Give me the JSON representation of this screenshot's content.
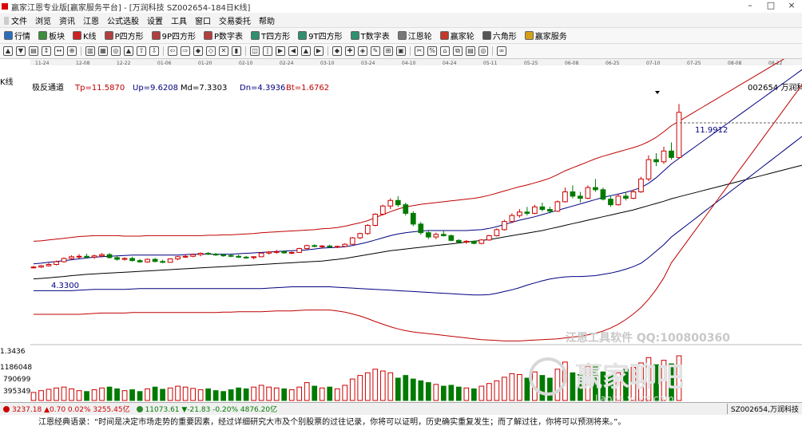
{
  "titlebar": {
    "title": "赢家江恩专业版[赢家服务平台] - [万润科技  SZ002654-184日K线]"
  },
  "menu": [
    "文件",
    "浏览",
    "资讯",
    "江恩",
    "公式选股",
    "设置",
    "工具",
    "窗口",
    "交易委托",
    "帮助"
  ],
  "toolbar": [
    {
      "label": "行情",
      "icon": "grid-icon",
      "color": "#2a6ebb"
    },
    {
      "label": "板块",
      "icon": "blocks-icon",
      "color": "#3a8f3a"
    },
    {
      "label": "K线",
      "icon": "candle-icon",
      "color": "#cc2222"
    },
    {
      "label": "P四方形",
      "icon": "p-square-icon",
      "color": "#b04040"
    },
    {
      "label": "9P四方形",
      "icon": "9p-square-icon",
      "color": "#b04040"
    },
    {
      "label": "P数字表",
      "icon": "p-table-icon",
      "color": "#b04040"
    },
    {
      "label": "T四方形",
      "icon": "t-square-icon",
      "color": "#2f8f6f"
    },
    {
      "label": "9T四方形",
      "icon": "9t-square-icon",
      "color": "#2f8f6f"
    },
    {
      "label": "T数字表",
      "icon": "t-table-icon",
      "color": "#2f8f6f"
    },
    {
      "label": "江恩轮",
      "icon": "gann-wheel-icon",
      "color": "#777"
    },
    {
      "label": "赢家轮",
      "icon": "winner-wheel-icon",
      "color": "#c0392b"
    },
    {
      "label": "六角形",
      "icon": "hexagon-icon",
      "color": "#555"
    },
    {
      "label": "赢家服务",
      "icon": "dollar-icon",
      "color": "#d4a017"
    }
  ],
  "chart": {
    "left_label": "K线",
    "indicator": {
      "name": "极反通道",
      "tp": "Tp=11.5870",
      "up": "Up=9.6208",
      "md": "Md=7.3303",
      "dn": "Dn=4.3936",
      "bt": "Bt=1.6762"
    },
    "stock_tag": "002654 万润科技",
    "high_label": "11.9912",
    "low_label": "4.3300",
    "volume_axis": [
      "1.3436",
      "1186048",
      "790699",
      "395349"
    ],
    "date_ticks": [
      "11-24",
      "12-08",
      "12-22",
      "01-06",
      "01-20",
      "02-10",
      "02-24",
      "03-10",
      "03-24",
      "04-10",
      "04-24",
      "05-11",
      "05-25",
      "06-08",
      "06-25",
      "07-10",
      "07-25",
      "08-08",
      "08-22"
    ],
    "watermark1": "江恩工具软件 QQ:100800360",
    "watermark2": "赢家聊吧",
    "watermark3": "liaoba.yucd.com"
  },
  "chart_data": {
    "type": "candlestick",
    "series_name": "万润科技 SZ002654 日K线",
    "ohlc": [
      [
        4.38,
        4.45,
        4.33,
        4.4
      ],
      [
        4.4,
        4.5,
        4.36,
        4.46
      ],
      [
        4.46,
        4.6,
        4.42,
        4.52
      ],
      [
        4.52,
        4.7,
        4.48,
        4.65
      ],
      [
        4.65,
        4.85,
        4.6,
        4.8
      ],
      [
        4.8,
        4.95,
        4.72,
        4.88
      ],
      [
        4.88,
        5.0,
        4.8,
        4.9
      ],
      [
        4.9,
        5.02,
        4.82,
        4.86
      ],
      [
        4.86,
        4.98,
        4.78,
        4.92
      ],
      [
        4.92,
        5.05,
        4.85,
        4.98
      ],
      [
        4.98,
        5.05,
        4.8,
        4.84
      ],
      [
        4.84,
        4.9,
        4.7,
        4.76
      ],
      [
        4.76,
        4.85,
        4.7,
        4.8
      ],
      [
        4.8,
        4.88,
        4.66,
        4.7
      ],
      [
        4.7,
        4.78,
        4.6,
        4.64
      ],
      [
        4.64,
        4.8,
        4.6,
        4.76
      ],
      [
        4.76,
        4.82,
        4.62,
        4.66
      ],
      [
        4.66,
        4.74,
        4.58,
        4.62
      ],
      [
        4.62,
        4.8,
        4.6,
        4.78
      ],
      [
        4.78,
        4.92,
        4.72,
        4.88
      ],
      [
        4.88,
        4.98,
        4.82,
        4.9
      ],
      [
        4.9,
        5.02,
        4.86,
        4.98
      ],
      [
        4.98,
        5.08,
        4.9,
        5.04
      ],
      [
        5.04,
        5.1,
        4.96,
        5.0
      ],
      [
        5.0,
        5.06,
        4.92,
        4.96
      ],
      [
        4.96,
        5.02,
        4.88,
        4.94
      ],
      [
        4.94,
        5.0,
        4.86,
        4.9
      ],
      [
        4.9,
        4.98,
        4.82,
        4.86
      ],
      [
        4.86,
        4.92,
        4.78,
        4.84
      ],
      [
        4.84,
        4.9,
        4.76,
        4.88
      ],
      [
        4.88,
        5.08,
        4.86,
        5.05
      ],
      [
        5.05,
        5.15,
        4.98,
        5.1
      ],
      [
        5.1,
        5.2,
        5.02,
        5.12
      ],
      [
        5.12,
        5.16,
        5.02,
        5.06
      ],
      [
        5.06,
        5.12,
        5.0,
        5.08
      ],
      [
        5.08,
        5.3,
        5.06,
        5.26
      ],
      [
        5.26,
        5.44,
        5.2,
        5.4
      ],
      [
        5.4,
        5.46,
        5.32,
        5.36
      ],
      [
        5.36,
        5.42,
        5.3,
        5.38
      ],
      [
        5.38,
        5.44,
        5.3,
        5.34
      ],
      [
        5.34,
        5.4,
        5.28,
        5.36
      ],
      [
        5.36,
        5.5,
        5.34,
        5.46
      ],
      [
        5.46,
        5.8,
        5.44,
        5.76
      ],
      [
        5.76,
        6.0,
        5.7,
        5.96
      ],
      [
        5.96,
        6.4,
        5.9,
        6.34
      ],
      [
        6.34,
        6.9,
        6.3,
        6.86
      ],
      [
        6.86,
        7.3,
        6.8,
        7.24
      ],
      [
        7.24,
        7.6,
        7.1,
        7.5
      ],
      [
        7.5,
        7.7,
        7.2,
        7.3
      ],
      [
        7.3,
        7.4,
        6.8,
        6.9
      ],
      [
        6.9,
        7.0,
        6.3,
        6.4
      ],
      [
        6.4,
        6.5,
        5.9,
        6.0
      ],
      [
        6.0,
        6.1,
        5.7,
        5.8
      ],
      [
        5.8,
        6.0,
        5.7,
        5.92
      ],
      [
        5.92,
        6.1,
        5.82,
        5.86
      ],
      [
        5.86,
        5.92,
        5.6,
        5.64
      ],
      [
        5.64,
        5.7,
        5.5,
        5.56
      ],
      [
        5.56,
        5.66,
        5.48,
        5.6
      ],
      [
        5.6,
        5.64,
        5.46,
        5.5
      ],
      [
        5.5,
        5.7,
        5.46,
        5.66
      ],
      [
        5.66,
        5.9,
        5.62,
        5.86
      ],
      [
        5.86,
        6.2,
        5.82,
        6.14
      ],
      [
        6.14,
        6.6,
        6.1,
        6.52
      ],
      [
        6.52,
        6.9,
        6.44,
        6.8
      ],
      [
        6.8,
        7.1,
        6.7,
        6.96
      ],
      [
        6.96,
        7.2,
        6.8,
        6.9
      ],
      [
        6.9,
        7.3,
        6.86,
        7.2
      ],
      [
        7.2,
        7.4,
        7.0,
        7.08
      ],
      [
        7.08,
        7.2,
        6.9,
        7.0
      ],
      [
        7.0,
        7.5,
        6.96,
        7.44
      ],
      [
        7.44,
        8.1,
        7.4,
        7.9
      ],
      [
        7.9,
        8.2,
        7.6,
        7.7
      ],
      [
        7.7,
        7.9,
        7.4,
        7.6
      ],
      [
        7.6,
        8.2,
        7.56,
        8.1
      ],
      [
        8.1,
        8.5,
        7.9,
        8.0
      ],
      [
        8.0,
        8.1,
        7.5,
        7.56
      ],
      [
        7.56,
        7.7,
        7.2,
        7.3
      ],
      [
        7.3,
        7.8,
        7.26,
        7.7
      ],
      [
        7.7,
        7.9,
        7.5,
        7.6
      ],
      [
        7.6,
        8.0,
        7.56,
        7.9
      ],
      [
        7.9,
        8.6,
        7.86,
        8.5
      ],
      [
        8.5,
        9.6,
        8.4,
        9.4
      ],
      [
        9.4,
        9.7,
        9.1,
        9.3
      ],
      [
        9.3,
        10.0,
        9.2,
        9.8
      ],
      [
        9.8,
        10.2,
        9.4,
        9.5
      ],
      [
        9.5,
        11.99,
        9.46,
        11.6
      ]
    ],
    "volume": [
      0.18,
      0.22,
      0.25,
      0.28,
      0.3,
      0.26,
      0.22,
      0.2,
      0.24,
      0.28,
      0.3,
      0.26,
      0.22,
      0.24,
      0.2,
      0.26,
      0.3,
      0.25,
      0.28,
      0.32,
      0.3,
      0.27,
      0.24,
      0.26,
      0.22,
      0.2,
      0.24,
      0.28,
      0.26,
      0.3,
      0.34,
      0.3,
      0.28,
      0.26,
      0.24,
      0.3,
      0.4,
      0.32,
      0.28,
      0.3,
      0.26,
      0.34,
      0.48,
      0.56,
      0.62,
      0.7,
      0.66,
      0.62,
      0.5,
      0.56,
      0.48,
      0.44,
      0.4,
      0.36,
      0.32,
      0.34,
      0.3,
      0.28,
      0.26,
      0.32,
      0.38,
      0.44,
      0.52,
      0.6,
      0.58,
      0.5,
      0.64,
      0.56,
      0.5,
      0.7,
      0.86,
      0.62,
      0.58,
      0.76,
      0.8,
      0.64,
      0.56,
      0.62,
      0.7,
      0.74,
      0.84,
      0.96,
      0.8,
      0.9,
      0.82,
      1.0
    ],
    "channel": {
      "tp": [
        5.6,
        5.62,
        5.66,
        5.7,
        5.74,
        5.78,
        5.82,
        5.84,
        5.86,
        5.86,
        5.86,
        5.86,
        5.84,
        5.84,
        5.84,
        5.86,
        5.86,
        5.86,
        5.86,
        5.86,
        5.86,
        5.86,
        5.86,
        5.88,
        5.88,
        5.9,
        5.9,
        5.92,
        5.94,
        5.96,
        6.0,
        6.02,
        6.04,
        6.06,
        6.08,
        6.1,
        6.12,
        6.14,
        6.18,
        6.2,
        6.24,
        6.3,
        6.38,
        6.46,
        6.56,
        6.7,
        6.84,
        6.98,
        7.1,
        7.2,
        7.26,
        7.32,
        7.36,
        7.4,
        7.44,
        7.48,
        7.52,
        7.56,
        7.6,
        7.66,
        7.74,
        7.84,
        7.94,
        8.04,
        8.14,
        8.22,
        8.32,
        8.42,
        8.54,
        8.7,
        8.88,
        9.02,
        9.16,
        9.3,
        9.44,
        9.56,
        9.66,
        9.76,
        9.86,
        9.96,
        10.08,
        10.24,
        10.44,
        10.7,
        10.98,
        11.59
      ],
      "up": [
        4.55,
        4.58,
        4.62,
        4.66,
        4.7,
        4.74,
        4.78,
        4.82,
        4.86,
        4.88,
        4.9,
        4.92,
        4.94,
        4.96,
        4.96,
        4.96,
        4.96,
        4.96,
        4.96,
        4.96,
        4.98,
        5.0,
        5.0,
        5.0,
        5.0,
        5.0,
        5.0,
        5.02,
        5.04,
        5.06,
        5.08,
        5.1,
        5.12,
        5.14,
        5.16,
        5.18,
        5.2,
        5.24,
        5.28,
        5.3,
        5.32,
        5.34,
        5.4,
        5.48,
        5.56,
        5.66,
        5.76,
        5.86,
        5.94,
        6.0,
        6.04,
        6.08,
        6.1,
        6.1,
        6.1,
        6.1,
        6.1,
        6.1,
        6.12,
        6.14,
        6.2,
        6.28,
        6.38,
        6.48,
        6.58,
        6.66,
        6.74,
        6.84,
        6.94,
        7.04,
        7.14,
        7.24,
        7.34,
        7.44,
        7.54,
        7.64,
        7.72,
        7.8,
        7.88,
        7.98,
        8.1,
        8.3,
        8.56,
        8.88,
        9.2,
        9.62
      ],
      "md": [
        3.85,
        3.87,
        3.9,
        3.93,
        3.96,
        4.0,
        4.03,
        4.06,
        4.08,
        4.1,
        4.12,
        4.14,
        4.16,
        4.18,
        4.2,
        4.22,
        4.24,
        4.26,
        4.28,
        4.3,
        4.32,
        4.34,
        4.36,
        4.38,
        4.4,
        4.42,
        4.44,
        4.46,
        4.48,
        4.5,
        4.52,
        4.54,
        4.56,
        4.58,
        4.6,
        4.62,
        4.64,
        4.66,
        4.68,
        4.72,
        4.76,
        4.8,
        4.86,
        4.92,
        4.98,
        5.04,
        5.1,
        5.16,
        5.2,
        5.24,
        5.28,
        5.32,
        5.36,
        5.4,
        5.44,
        5.48,
        5.52,
        5.56,
        5.6,
        5.64,
        5.68,
        5.74,
        5.8,
        5.86,
        5.92,
        5.98,
        6.04,
        6.1,
        6.18,
        6.26,
        6.34,
        6.42,
        6.5,
        6.58,
        6.66,
        6.74,
        6.82,
        6.9,
        6.98,
        7.06,
        7.16,
        7.26,
        7.36,
        7.46,
        7.58,
        7.33
      ],
      "dn": [
        3.3,
        3.3,
        3.3,
        3.3,
        3.3,
        3.3,
        3.32,
        3.34,
        3.36,
        3.36,
        3.36,
        3.36,
        3.36,
        3.38,
        3.4,
        3.4,
        3.4,
        3.4,
        3.4,
        3.4,
        3.4,
        3.4,
        3.4,
        3.4,
        3.4,
        3.4,
        3.4,
        3.4,
        3.4,
        3.4,
        3.4,
        3.42,
        3.44,
        3.46,
        3.48,
        3.48,
        3.48,
        3.48,
        3.48,
        3.48,
        3.46,
        3.44,
        3.42,
        3.4,
        3.38,
        3.36,
        3.34,
        3.32,
        3.3,
        3.28,
        3.26,
        3.24,
        3.22,
        3.2,
        3.18,
        3.16,
        3.14,
        3.12,
        3.1,
        3.1,
        3.12,
        3.18,
        3.26,
        3.34,
        3.44,
        3.56,
        3.66,
        3.76,
        3.84,
        3.9,
        3.94,
        3.96,
        3.96,
        3.98,
        4.0,
        4.06,
        4.12,
        4.2,
        4.3,
        4.42,
        4.58,
        4.84,
        5.14,
        5.44,
        5.8,
        4.39
      ],
      "bt": [
        2.2,
        2.2,
        2.2,
        2.2,
        2.2,
        2.2,
        2.2,
        2.22,
        2.24,
        2.26,
        2.26,
        2.26,
        2.26,
        2.28,
        2.28,
        2.28,
        2.28,
        2.28,
        2.28,
        2.28,
        2.28,
        2.28,
        2.28,
        2.28,
        2.28,
        2.3,
        2.3,
        2.32,
        2.32,
        2.32,
        2.32,
        2.34,
        2.36,
        2.36,
        2.36,
        2.38,
        2.4,
        2.4,
        2.4,
        2.4,
        2.36,
        2.3,
        2.22,
        2.12,
        2.0,
        1.86,
        1.74,
        1.62,
        1.52,
        1.44,
        1.38,
        1.34,
        1.3,
        1.26,
        1.22,
        1.18,
        1.14,
        1.1,
        1.06,
        1.02,
        1.0,
        0.98,
        0.96,
        0.96,
        0.96,
        0.98,
        1.0,
        1.02,
        1.04,
        1.06,
        1.1,
        1.14,
        1.18,
        1.24,
        1.32,
        1.42,
        1.56,
        1.74,
        1.96,
        2.22,
        2.52,
        2.9,
        3.36,
        3.9,
        4.6,
        1.68
      ]
    },
    "y_range": [
      0.9,
      12.3
    ],
    "colors": {
      "up": "#cc0000",
      "down": "#007a00",
      "tp": "#c00000",
      "up_line": "#000080",
      "md": "#000000",
      "dn": "#000080",
      "bt": "#c00000"
    }
  },
  "status": {
    "sh": "3237.18 ▲0.70 0.02% 3255.45亿",
    "sz": "11073.61 ▼-21.83 -0.20% 4876.20亿",
    "stock": "SZ002654,万润科技"
  },
  "quote": "江恩经典语录：“时间是决定市场走势的重要因素，经过详细研究大市及个别股票的过往记录，你将可以证明，历史确实重复发生；而了解过往，你将可以预测将来。”。"
}
